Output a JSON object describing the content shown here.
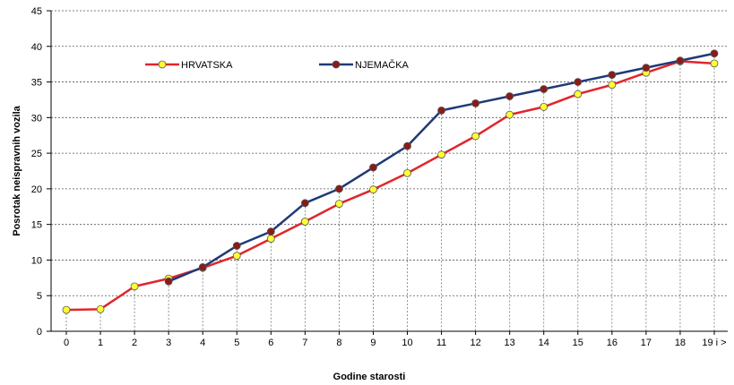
{
  "chart_data": {
    "type": "line",
    "title": "",
    "xlabel": "Godine starosti",
    "ylabel": "Posrotak neispravnih vozila",
    "categories": [
      "0",
      "1",
      "2",
      "3",
      "4",
      "5",
      "6",
      "7",
      "8",
      "9",
      "10",
      "11",
      "12",
      "13",
      "14",
      "15",
      "16",
      "17",
      "18",
      "19 i >"
    ],
    "ylim": [
      0,
      45
    ],
    "yticks": [
      0,
      5,
      10,
      15,
      20,
      25,
      30,
      35,
      40,
      45
    ],
    "grid": {
      "horizontal": true,
      "vertical_drop_lines": true
    },
    "legend_position": "top-left",
    "series": [
      {
        "name": "HRVATSKA",
        "line_color": "#e0262b",
        "marker_color": "#ffff33",
        "values": [
          3.0,
          3.1,
          6.3,
          7.4,
          8.9,
          10.6,
          13.0,
          15.4,
          17.9,
          19.9,
          22.2,
          24.8,
          27.4,
          30.4,
          31.5,
          33.3,
          34.6,
          36.3,
          37.9,
          37.6
        ]
      },
      {
        "name": "NJEMAČKA",
        "line_color": "#1f3a78",
        "marker_color": "#8b1a1a",
        "values": [
          null,
          null,
          null,
          7.0,
          9.0,
          12.0,
          14.0,
          18.0,
          20.0,
          23.0,
          26.0,
          31.0,
          32.0,
          33.0,
          34.0,
          35.0,
          36.0,
          37.0,
          38.0,
          39.0
        ]
      }
    ]
  }
}
